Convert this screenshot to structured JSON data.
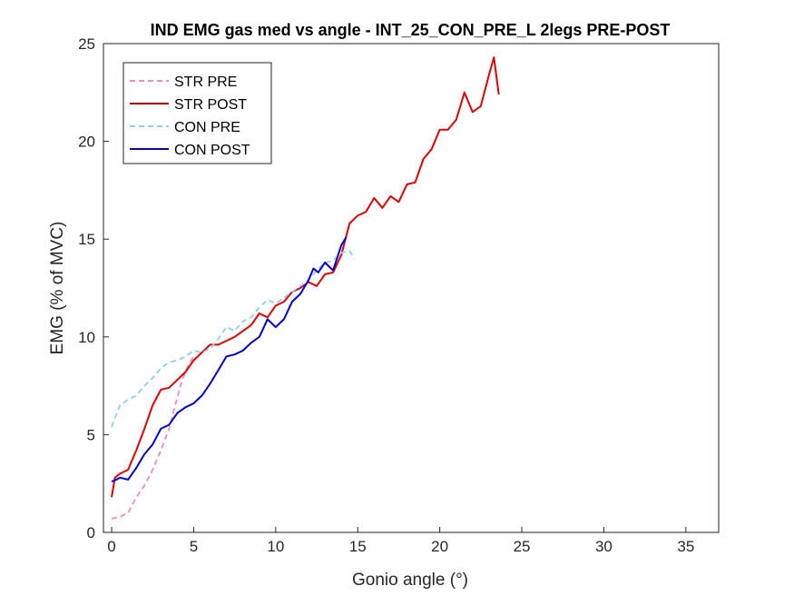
{
  "chart_data": {
    "type": "line",
    "title": "IND EMG gas med vs angle - INT_25_CON_PRE_L 2legs PRE-POST",
    "xlabel": "Gonio angle (°)",
    "ylabel": "EMG (% of MVC)",
    "xlim": [
      -0.5,
      37
    ],
    "ylim": [
      0,
      25
    ],
    "xticks": [
      0,
      5,
      10,
      15,
      20,
      25,
      30,
      35
    ],
    "yticks": [
      0,
      5,
      10,
      15,
      20,
      25
    ],
    "xtick_labels": [
      "0",
      "5",
      "10",
      "15",
      "20",
      "25",
      "30",
      "35"
    ],
    "ytick_labels": [
      "0",
      "5",
      "10",
      "15",
      "20",
      "25"
    ],
    "grid": false,
    "legend": {
      "placement": "top-left",
      "entries": [
        "STR PRE",
        "STR POST",
        "CON PRE",
        "CON POST"
      ]
    },
    "series": [
      {
        "name": "STR PRE",
        "color": "#f08cbe",
        "dash": "dashed",
        "points": [
          [
            0,
            0.7
          ],
          [
            0.5,
            0.8
          ],
          [
            1,
            1
          ],
          [
            1.5,
            1.8
          ],
          [
            2,
            2.4
          ],
          [
            2.5,
            3.2
          ],
          [
            3,
            4.2
          ],
          [
            3.5,
            5.3
          ],
          [
            4,
            6.9
          ],
          [
            4.3,
            7.8
          ],
          [
            4.7,
            8.6
          ],
          [
            5,
            9
          ]
        ]
      },
      {
        "name": "STR POST",
        "color": "#e00000",
        "dash": "solid",
        "points": [
          [
            0,
            1.8
          ],
          [
            0.2,
            2.8
          ],
          [
            0.5,
            3
          ],
          [
            1,
            3.2
          ],
          [
            1.5,
            4.2
          ],
          [
            2,
            5.3
          ],
          [
            2.5,
            6.5
          ],
          [
            3,
            7.3
          ],
          [
            3.5,
            7.4
          ],
          [
            4,
            7.8
          ],
          [
            4.5,
            8.2
          ],
          [
            5,
            8.8
          ],
          [
            5.5,
            9.2
          ],
          [
            6,
            9.6
          ],
          [
            6.5,
            9.6
          ],
          [
            7,
            9.8
          ],
          [
            7.5,
            10
          ],
          [
            8,
            10.3
          ],
          [
            8.5,
            10.6
          ],
          [
            9,
            11.2
          ],
          [
            9.5,
            11
          ],
          [
            10,
            11.6
          ],
          [
            10.5,
            11.8
          ],
          [
            11,
            12.3
          ],
          [
            11.5,
            12.5
          ],
          [
            12,
            12.8
          ],
          [
            12.5,
            12.6
          ],
          [
            13,
            13.2
          ],
          [
            13.5,
            13.3
          ],
          [
            14,
            14.2
          ],
          [
            14.5,
            15.8
          ],
          [
            15,
            16.2
          ],
          [
            15.5,
            16.4
          ],
          [
            16,
            17.1
          ],
          [
            16.5,
            16.6
          ],
          [
            17,
            17.2
          ],
          [
            17.5,
            16.9
          ],
          [
            18,
            17.8
          ],
          [
            18.5,
            17.9
          ],
          [
            19,
            19.1
          ],
          [
            19.5,
            19.6
          ],
          [
            20,
            20.6
          ],
          [
            20.5,
            20.6
          ],
          [
            21,
            21.1
          ],
          [
            21.5,
            22.5
          ],
          [
            22,
            21.5
          ],
          [
            22.5,
            21.8
          ],
          [
            23,
            23.4
          ],
          [
            23.3,
            24.3
          ],
          [
            23.6,
            22.4
          ]
        ]
      },
      {
        "name": "CON PRE",
        "color": "#8fcff0",
        "dash": "dashed",
        "points": [
          [
            0,
            5.4
          ],
          [
            0.5,
            6.5
          ],
          [
            1,
            6.8
          ],
          [
            1.5,
            7
          ],
          [
            2,
            7.5
          ],
          [
            2.5,
            7.9
          ],
          [
            3,
            8.4
          ],
          [
            3.5,
            8.7
          ],
          [
            4,
            8.8
          ],
          [
            4.5,
            9
          ],
          [
            5,
            9.3
          ],
          [
            5.5,
            9.2
          ],
          [
            6,
            9.4
          ],
          [
            6.5,
            9.9
          ],
          [
            7,
            10.5
          ],
          [
            7.5,
            10.3
          ],
          [
            8,
            10.8
          ],
          [
            8.5,
            11
          ],
          [
            9,
            11.5
          ],
          [
            9.5,
            11.9
          ],
          [
            10,
            11.7
          ],
          [
            10.5,
            12
          ],
          [
            11,
            12.3
          ],
          [
            11.5,
            12.6
          ],
          [
            12,
            12.9
          ],
          [
            12.5,
            13.4
          ],
          [
            13,
            13.8
          ],
          [
            13.5,
            13.9
          ],
          [
            14,
            14.3
          ],
          [
            14.5,
            14.4
          ],
          [
            14.8,
            14
          ]
        ]
      },
      {
        "name": "CON POST",
        "color": "#0000d0",
        "dash": "solid",
        "points": [
          [
            0,
            2.6
          ],
          [
            0.3,
            2.7
          ],
          [
            0.5,
            2.8
          ],
          [
            1,
            2.7
          ],
          [
            1.5,
            3.3
          ],
          [
            2,
            4
          ],
          [
            2.5,
            4.5
          ],
          [
            3,
            5.3
          ],
          [
            3.5,
            5.5
          ],
          [
            4,
            6.1
          ],
          [
            4.5,
            6.4
          ],
          [
            5,
            6.6
          ],
          [
            5.5,
            7
          ],
          [
            6,
            7.6
          ],
          [
            6.5,
            8.3
          ],
          [
            7,
            9
          ],
          [
            7.5,
            9.1
          ],
          [
            8,
            9.3
          ],
          [
            8.5,
            9.7
          ],
          [
            9,
            10
          ],
          [
            9.5,
            10.9
          ],
          [
            10,
            10.5
          ],
          [
            10.5,
            10.9
          ],
          [
            11,
            11.8
          ],
          [
            11.5,
            12.2
          ],
          [
            12,
            12.9
          ],
          [
            12.3,
            13.5
          ],
          [
            12.6,
            13.3
          ],
          [
            13,
            13.8
          ],
          [
            13.5,
            13.4
          ],
          [
            14,
            14.7
          ],
          [
            14.3,
            15.1
          ]
        ]
      }
    ]
  }
}
